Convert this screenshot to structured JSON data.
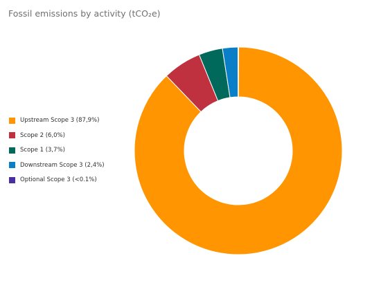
{
  "chart_data": {
    "type": "pie",
    "title": "Fossil emissions by activity (tCO₂e)",
    "donut": true,
    "legend_position": "left",
    "categories": [
      "Upstream Scope 3 (87,9%)",
      "Scope 2 (6,0%)",
      "Scope 1 (3,7%)",
      "Downstream Scope 3 (2,4%)",
      "Optional Scope 3 (<0.1%)"
    ],
    "values": [
      87.9,
      6.0,
      3.7,
      2.4,
      0.05
    ],
    "colors": [
      "#FF9500",
      "#C0313F",
      "#00695C",
      "#0A7FC8",
      "#4A2FA0"
    ]
  }
}
